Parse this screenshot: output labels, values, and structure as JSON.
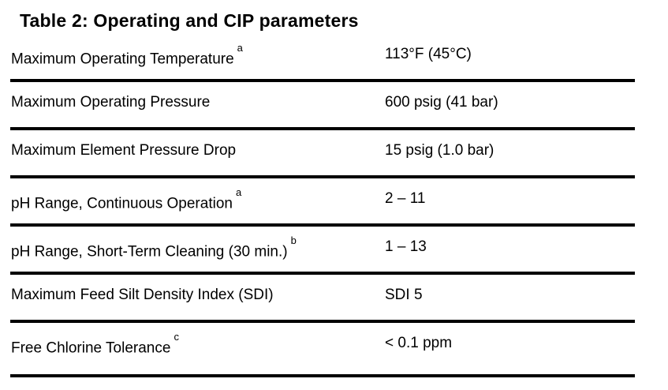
{
  "page": {
    "background": "#ffffff",
    "text_color": "#000000",
    "rule_color": "#000000"
  },
  "table": {
    "title": "Table 2: Operating and CIP parameters",
    "rows": [
      {
        "label": "Maximum Operating Temperature",
        "superscript": "a",
        "value": "113°F (45°C)"
      },
      {
        "label": "Maximum Operating Pressure",
        "superscript": "",
        "value": "600 psig (41 bar)"
      },
      {
        "label": "Maximum Element Pressure Drop",
        "superscript": "",
        "value": "15 psig (1.0 bar)"
      },
      {
        "label": "pH Range, Continuous Operation",
        "superscript": "a",
        "value": "2 – 11"
      },
      {
        "label": "pH Range, Short-Term Cleaning (30 min.)",
        "superscript": "b",
        "value": "1 – 13"
      },
      {
        "label": "Maximum Feed Silt Density Index (SDI)",
        "superscript": "",
        "value": "SDI 5"
      },
      {
        "label": "Free Chlorine Tolerance",
        "superscript": "c",
        "value": "< 0.1 ppm"
      }
    ]
  }
}
